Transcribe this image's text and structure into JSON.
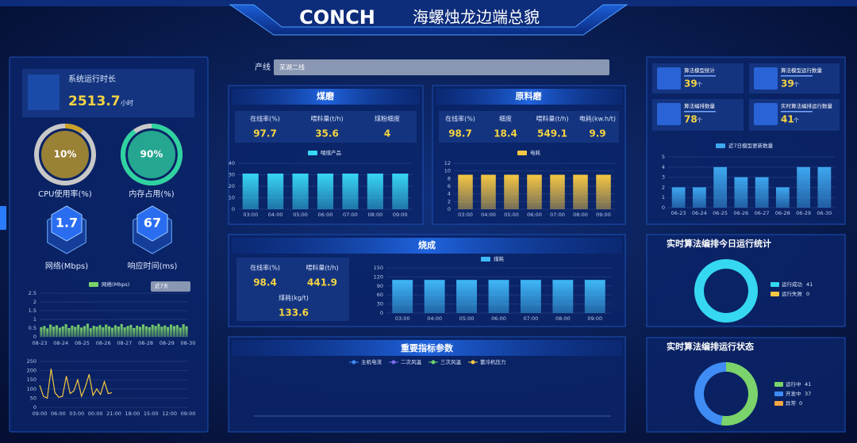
{
  "header": {
    "brand": "CONCH",
    "title": "海螺烛龙边端总貌"
  },
  "runtime": {
    "label": "系统运行时长",
    "value": "2513.7",
    "unit": "小时"
  },
  "gauges": [
    {
      "label": "CPU使用率(%)",
      "value": 10,
      "value_label": "10%",
      "color": "#c9a227"
    },
    {
      "label": "内存占用(%)",
      "value": 90,
      "value_label": "90%",
      "color": "#2fd3a0"
    }
  ],
  "hexes": [
    {
      "label": "网络(Mbps)",
      "value": "1.7"
    },
    {
      "label": "响应时间(ms)",
      "value": "67"
    }
  ],
  "network_chart": {
    "type": "bar",
    "legend": "网络(Mbps)",
    "period": "近7天",
    "color": "#7bd36b",
    "ylim": [
      0,
      2.5
    ],
    "yticks": [
      0,
      0.5,
      1,
      1.5,
      2,
      2.5
    ],
    "xtick_labels": [
      "08-23",
      "08-24",
      "08-25",
      "08-26",
      "08-27",
      "08-28",
      "08-29",
      "08-30"
    ],
    "values": [
      0.55,
      0.62,
      0.48,
      0.7,
      0.58,
      0.66,
      0.52,
      0.6,
      0.72,
      0.5,
      0.64,
      0.57,
      0.69,
      0.53,
      0.61,
      0.75,
      0.49,
      0.63,
      0.58,
      0.67,
      0.55,
      0.7,
      0.6,
      0.52,
      0.66,
      0.59,
      0.73,
      0.54,
      0.62,
      0.68,
      0.5,
      0.64,
      0.57,
      0.71,
      0.6,
      0.55,
      0.69,
      0.62,
      0.74,
      0.58,
      0.65,
      0.56,
      0.7,
      0.61,
      0.67,
      0.53,
      0.72,
      0.6
    ]
  },
  "response_chart": {
    "type": "line",
    "color": "#f5c742",
    "ylim": [
      0,
      250
    ],
    "yticks": [
      0,
      50,
      100,
      150,
      200,
      250
    ],
    "xtick_labels": [
      "09:00",
      "06:00",
      "03:00",
      "00:00",
      "21:00",
      "18:00",
      "15:00",
      "12:00",
      "09:00"
    ],
    "values": [
      120,
      60,
      50,
      210,
      80,
      55,
      60,
      170,
      75,
      90,
      150,
      60,
      110,
      180,
      65,
      100,
      70,
      140,
      75,
      80,
      null,
      null,
      null,
      null,
      null,
      null,
      null,
      null,
      null,
      null,
      null,
      null,
      null,
      null,
      null,
      null,
      null,
      null,
      null,
      null
    ]
  },
  "line_selector": {
    "label": "产线",
    "value": "芜湖二线"
  },
  "coal_mill": {
    "title": "煤磨",
    "stats": [
      {
        "label": "在线率(%)",
        "value": "97.7"
      },
      {
        "label": "喂料量(t/h)",
        "value": "35.6"
      },
      {
        "label": "煤粉细度",
        "value": "4"
      }
    ],
    "chart": {
      "type": "bar",
      "legend": "喂煤产品",
      "color": "#38d6f5",
      "ylim": [
        0,
        40
      ],
      "yticks": [
        0,
        10,
        20,
        30,
        40
      ],
      "categories": [
        "03:00",
        "04:00",
        "05:00",
        "06:00",
        "07:00",
        "08:00",
        "09:00"
      ],
      "values": [
        31,
        31,
        31,
        31,
        31,
        31,
        31
      ]
    }
  },
  "raw_mill": {
    "title": "原料磨",
    "stats": [
      {
        "label": "在线率(%)",
        "value": "98.7"
      },
      {
        "label": "细度",
        "value": "18.4"
      },
      {
        "label": "喂料量(t/h)",
        "value": "549.1"
      },
      {
        "label": "电耗(kw.h/t)",
        "value": "9.9"
      }
    ],
    "chart": {
      "type": "bar",
      "legend": "电耗",
      "color": "#f5c742",
      "ylim": [
        0,
        12
      ],
      "yticks": [
        0,
        2,
        4,
        6,
        8,
        10,
        12
      ],
      "categories": [
        "03:00",
        "04:00",
        "05:00",
        "06:00",
        "07:00",
        "08:00",
        "09:00"
      ],
      "values": [
        9,
        9,
        9,
        9,
        9,
        9,
        9
      ]
    }
  },
  "firing": {
    "title": "烧成",
    "stats": [
      {
        "label": "在线率(%)",
        "value": "98.4"
      },
      {
        "label": "喂料量(t/h)",
        "value": "441.9"
      },
      {
        "label": "煤耗(kg/t)",
        "value": "133.6"
      }
    ],
    "chart": {
      "type": "bar",
      "legend": "煤耗",
      "color": "#3fb8f8",
      "ylim": [
        0,
        150
      ],
      "yticks": [
        0,
        30,
        60,
        90,
        120,
        150
      ],
      "categories": [
        "03:00",
        "04:00",
        "05:00",
        "06:00",
        "07:00",
        "08:00",
        "09:00"
      ],
      "values": [
        110,
        110,
        110,
        110,
        110,
        110,
        110
      ]
    }
  },
  "key_params": {
    "title": "重要指标参数",
    "series": [
      {
        "name": "主机电流",
        "color": "#3f8cf5"
      },
      {
        "name": "二次风温",
        "color": "#7a6bf0"
      },
      {
        "name": "三次风温",
        "color": "#6fd36b"
      },
      {
        "name": "篦冷机压力",
        "color": "#f5c742"
      }
    ]
  },
  "cards": [
    {
      "label": "算法模型统计",
      "value": "39",
      "unit": "个"
    },
    {
      "label": "算法模型运行数量",
      "value": "39",
      "unit": "个"
    },
    {
      "label": "算法编排数量",
      "value": "78",
      "unit": "个"
    },
    {
      "label": "实时算法编排运行数量",
      "value": "41",
      "unit": "个"
    }
  ],
  "update_chart": {
    "type": "bar",
    "legend": "近7日模型更新数量",
    "color": "#3ea7f0",
    "ylim": [
      0,
      5
    ],
    "yticks": [
      0,
      1,
      2,
      3,
      4,
      5
    ],
    "categories": [
      "06-23",
      "06-24",
      "06-25",
      "06-26",
      "06-27",
      "06-28",
      "06-29",
      "06-30"
    ],
    "values": [
      2,
      2,
      4,
      3,
      3,
      2,
      4,
      4
    ]
  },
  "today_stats": {
    "title": "实时算法编排今日运行统计",
    "series": [
      {
        "name": "运行成功",
        "color": "#35d8f0",
        "value": 41
      },
      {
        "name": "运行失败",
        "color": "#f5c742",
        "value": 0
      }
    ]
  },
  "run_status": {
    "title": "实时算法编排运行状态",
    "series": [
      {
        "name": "运行中",
        "color": "#7bd36b",
        "value": 41
      },
      {
        "name": "开发中",
        "color": "#3f8cf5",
        "value": 37
      },
      {
        "name": "异常",
        "color": "#f5a742",
        "value": 0
      }
    ]
  }
}
